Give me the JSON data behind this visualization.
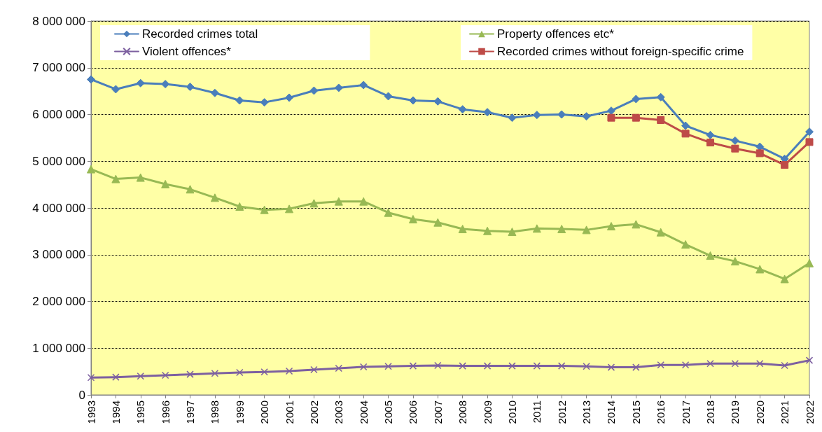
{
  "chart_data": {
    "type": "line",
    "categories": [
      "1993",
      "1994",
      "1995",
      "1996",
      "1997",
      "1998",
      "1999",
      "2000",
      "2001",
      "2002",
      "2003",
      "2004",
      "2005",
      "2006",
      "2007",
      "2008",
      "2009",
      "2010",
      "2011",
      "2012",
      "2013",
      "2014",
      "2015",
      "2016",
      "2017",
      "2018",
      "2019",
      "2020",
      "2021",
      "2022"
    ],
    "series": [
      {
        "name": "Recorded crimes total",
        "color": "#4a7ebb",
        "marker": "diamond",
        "values": [
          6750000,
          6540000,
          6670000,
          6650000,
          6590000,
          6460000,
          6300000,
          6260000,
          6360000,
          6510000,
          6570000,
          6630000,
          6390000,
          6300000,
          6280000,
          6110000,
          6050000,
          5930000,
          5990000,
          6000000,
          5960000,
          6080000,
          6330000,
          6370000,
          5760000,
          5560000,
          5440000,
          5310000,
          5050000,
          5630000
        ]
      },
      {
        "name": "Property offences etc*",
        "color": "#98b954",
        "marker": "triangle",
        "values": [
          4830000,
          4620000,
          4650000,
          4510000,
          4400000,
          4220000,
          4030000,
          3960000,
          3980000,
          4100000,
          4140000,
          4140000,
          3900000,
          3760000,
          3690000,
          3550000,
          3510000,
          3490000,
          3560000,
          3550000,
          3530000,
          3610000,
          3650000,
          3480000,
          3220000,
          2980000,
          2860000,
          2690000,
          2480000,
          2820000
        ]
      },
      {
        "name": "Violent offences*",
        "color": "#7d60a0",
        "marker": "cross",
        "values": [
          370000,
          380000,
          400000,
          420000,
          440000,
          460000,
          480000,
          490000,
          510000,
          540000,
          570000,
          600000,
          610000,
          620000,
          630000,
          620000,
          620000,
          620000,
          620000,
          620000,
          610000,
          590000,
          590000,
          640000,
          640000,
          670000,
          670000,
          670000,
          630000,
          740000
        ]
      },
      {
        "name": "Recorded crimes without foreign-specific crime",
        "color": "#be4b48",
        "marker": "square",
        "values": [
          null,
          null,
          null,
          null,
          null,
          null,
          null,
          null,
          null,
          null,
          null,
          null,
          null,
          null,
          null,
          null,
          null,
          null,
          null,
          null,
          null,
          5930000,
          5930000,
          5880000,
          5590000,
          5400000,
          5270000,
          5170000,
          4920000,
          5410000
        ]
      }
    ],
    "ylim": [
      0,
      8000000
    ],
    "yticks": [
      {
        "value": 0,
        "label": "0"
      },
      {
        "value": 1000000,
        "label": "1 000 000"
      },
      {
        "value": 2000000,
        "label": "2 000 000"
      },
      {
        "value": 3000000,
        "label": "3 000 000"
      },
      {
        "value": 4000000,
        "label": "4 000 000"
      },
      {
        "value": 5000000,
        "label": "5 000 000"
      },
      {
        "value": 6000000,
        "label": "6 000 000"
      },
      {
        "value": 7000000,
        "label": "7 000 000"
      },
      {
        "value": 8000000,
        "label": "8 000 000"
      }
    ],
    "grid": "y",
    "legend": "top",
    "line_style": "solid"
  }
}
